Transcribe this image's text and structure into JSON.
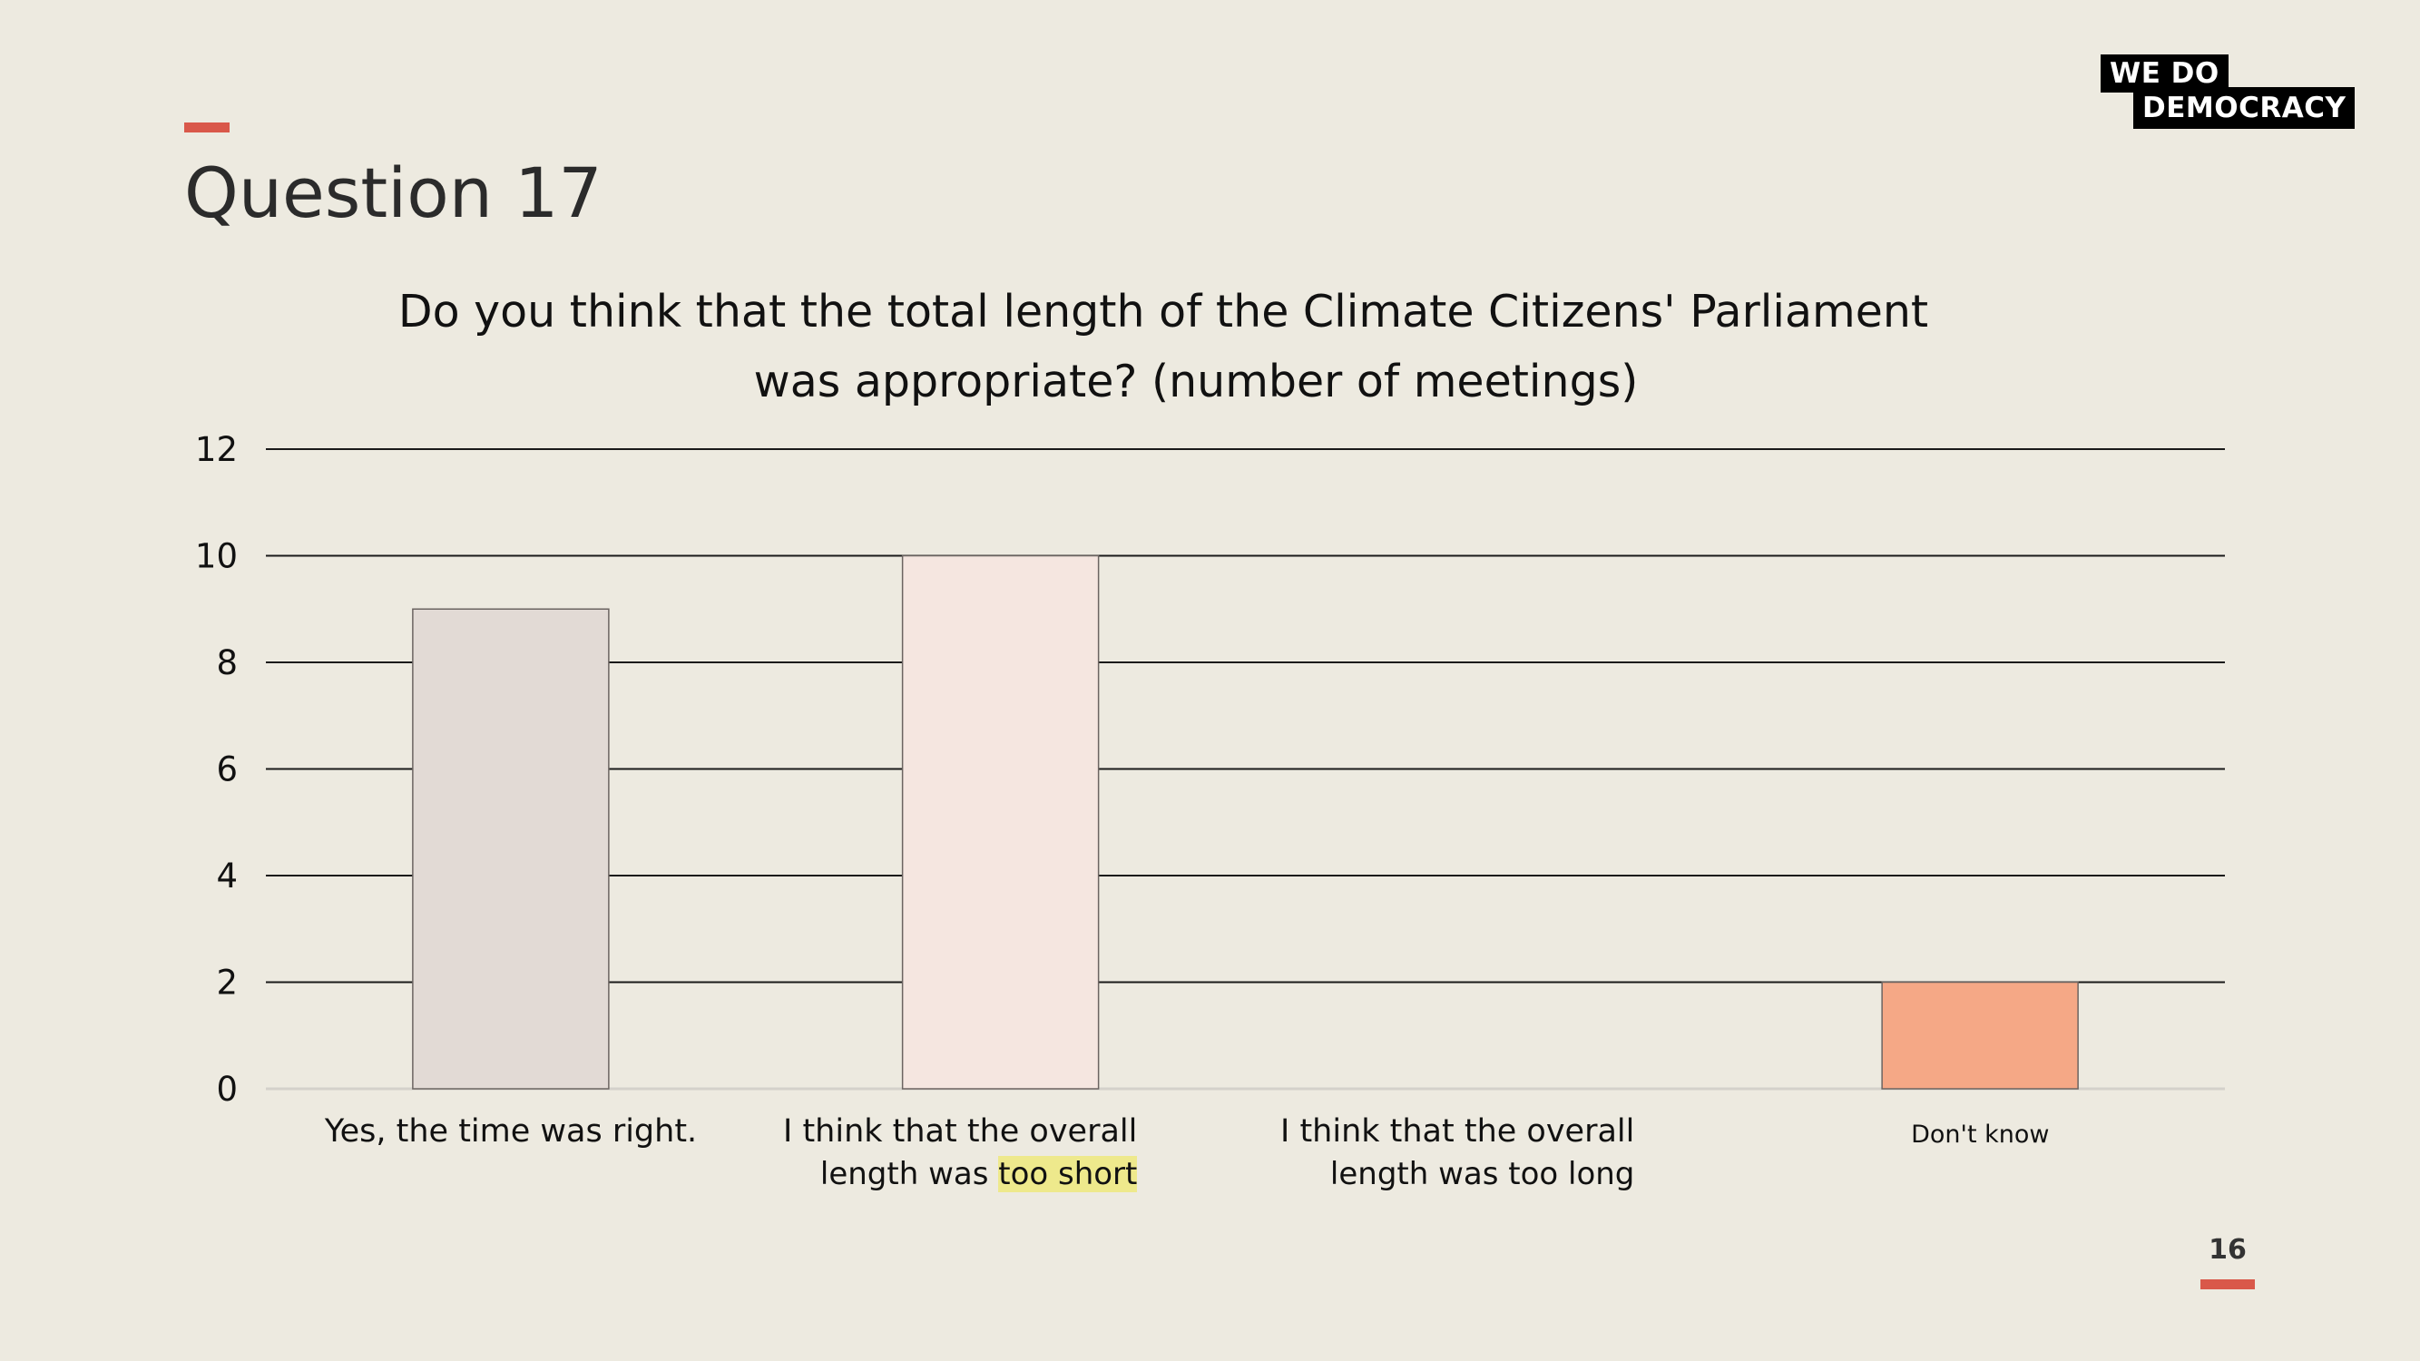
{
  "page": {
    "title": "Question 17",
    "logo_line1": "WE  DO",
    "logo_line2": "DEMOCRACY",
    "page_number": "16",
    "accent_color": "#d9584a"
  },
  "chart_data": {
    "type": "bar",
    "title_line1": "Do you think that the total length of the Climate Citizens' Parliament",
    "title_line2": "was appropriate? (number of meetings)",
    "categories": [
      "Yes, the time was right.",
      "I think that the overall length was too short",
      "I think that the overall length was too long",
      "Don't know"
    ],
    "category_labels": [
      {
        "line1": "Yes, the time was right.",
        "line2_prefix": "",
        "line2_highlight": ""
      },
      {
        "line1": "I think that the overall",
        "line2_prefix": "length was ",
        "line2_highlight": "too short"
      },
      {
        "line1": "I think that the overall",
        "line2_prefix": "length was too long",
        "line2_highlight": ""
      },
      {
        "line1": "Don't know",
        "line2_prefix": "",
        "line2_highlight": ""
      }
    ],
    "values": [
      9,
      10,
      0,
      2
    ],
    "bar_colors": [
      "#e2dad5",
      "#f5e6e0",
      "#f0d4c8",
      "#f5a886"
    ],
    "highlight_color": "#eee98c",
    "ylim": [
      0,
      12
    ],
    "yticks": [
      0,
      2,
      4,
      6,
      8,
      10,
      12
    ],
    "grid": true,
    "legend": "none"
  }
}
